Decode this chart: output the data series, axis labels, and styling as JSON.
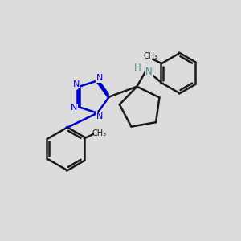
{
  "background_color": "#dcdcdc",
  "bond_color": "#1a1a1a",
  "nitrogen_color": "#0000cc",
  "nh_color": "#4a9090",
  "bond_width": 1.8,
  "figsize": [
    3.0,
    3.0
  ],
  "dpi": 100,
  "xlim": [
    0,
    10
  ],
  "ylim": [
    0,
    10
  ]
}
